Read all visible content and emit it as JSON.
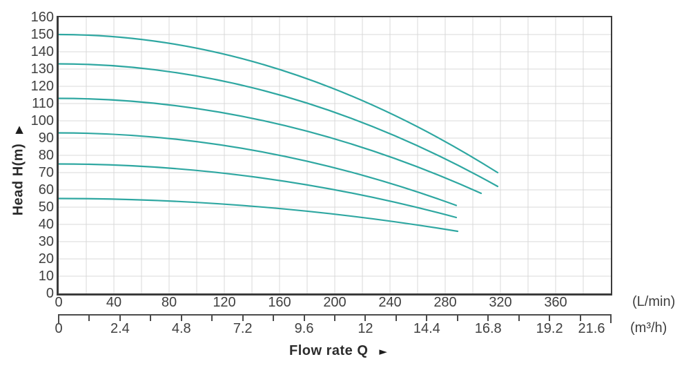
{
  "chart_data": {
    "type": "line",
    "title": "",
    "ylabel": "Head H(m)",
    "xlabel": "Flow rate Q",
    "legend": "none",
    "grid": "on",
    "colors": {
      "curve": "#2ea7a1",
      "grid": "#d9d9d9",
      "axis_border": "#3b3b3b",
      "ruler": "#4a4a4a",
      "text": "#3f3f3f"
    },
    "icons": {
      "y_axis_arrow": "▲",
      "x_axis_arrow": "►"
    },
    "y_axis": {
      "min": 0,
      "max": 160,
      "step": 10,
      "tick_labels": [
        "0",
        "10",
        "20",
        "30",
        "40",
        "50",
        "60",
        "70",
        "80",
        "90",
        "100",
        "110",
        "120",
        "130",
        "140",
        "150",
        "160"
      ]
    },
    "x_axis_lmin": {
      "unit_label": "(L/min)",
      "min": 0,
      "max": 400,
      "label_step": 40,
      "grid_step": 20,
      "tick_labels": [
        "0",
        "40",
        "80",
        "120",
        "160",
        "200",
        "240",
        "280",
        "320",
        "360"
      ]
    },
    "x_axis_m3h": {
      "unit_label": "(m³/h)",
      "min": 0,
      "max": 21.6,
      "minor_step": 1.2,
      "tick_labels": [
        "0",
        "2.4",
        "4.8",
        "7.2",
        "9.6",
        "12",
        "14.4",
        "16.8",
        "19.2",
        "21.6"
      ]
    },
    "series": [
      {
        "name": "curve_1",
        "start_head_m": 150,
        "end_q_lmin": 318,
        "end_head_m": 70,
        "points": [
          [
            0,
            150
          ],
          [
            40,
            148.7
          ],
          [
            80,
            144.9
          ],
          [
            120,
            138.6
          ],
          [
            160,
            129.7
          ],
          [
            200,
            118.4
          ],
          [
            240,
            104.4
          ],
          [
            280,
            88.0
          ],
          [
            318,
            70
          ]
        ]
      },
      {
        "name": "curve_2",
        "start_head_m": 133,
        "end_q_lmin": 318,
        "end_head_m": 62,
        "points": [
          [
            0,
            133
          ],
          [
            40,
            131.9
          ],
          [
            80,
            128.5
          ],
          [
            120,
            122.9
          ],
          [
            160,
            115.0
          ],
          [
            200,
            104.9
          ],
          [
            240,
            92.6
          ],
          [
            280,
            77.9
          ],
          [
            318,
            62
          ]
        ]
      },
      {
        "name": "curve_3",
        "start_head_m": 113,
        "end_q_lmin": 306,
        "end_head_m": 58,
        "points": [
          [
            0,
            113
          ],
          [
            40,
            112.1
          ],
          [
            80,
            109.2
          ],
          [
            120,
            104.5
          ],
          [
            160,
            98.0
          ],
          [
            200,
            89.5
          ],
          [
            240,
            79.2
          ],
          [
            280,
            67.0
          ],
          [
            306,
            58
          ]
        ]
      },
      {
        "name": "curve_4",
        "start_head_m": 93,
        "end_q_lmin": 288,
        "end_head_m": 51,
        "points": [
          [
            0,
            93
          ],
          [
            40,
            92.2
          ],
          [
            80,
            89.8
          ],
          [
            120,
            85.7
          ],
          [
            160,
            80.0
          ],
          [
            200,
            72.7
          ],
          [
            240,
            63.8
          ],
          [
            280,
            53.3
          ],
          [
            288,
            51
          ]
        ]
      },
      {
        "name": "curve_5",
        "start_head_m": 75,
        "end_q_lmin": 288,
        "end_head_m": 44,
        "points": [
          [
            0,
            75
          ],
          [
            40,
            74.4
          ],
          [
            80,
            72.6
          ],
          [
            120,
            69.6
          ],
          [
            160,
            65.4
          ],
          [
            200,
            60.1
          ],
          [
            240,
            53.5
          ],
          [
            280,
            45.7
          ],
          [
            288,
            44
          ]
        ]
      },
      {
        "name": "curve_6",
        "start_head_m": 55,
        "end_q_lmin": 289,
        "end_head_m": 36,
        "points": [
          [
            0,
            55
          ],
          [
            40,
            54.6
          ],
          [
            80,
            53.5
          ],
          [
            120,
            51.7
          ],
          [
            160,
            49.2
          ],
          [
            200,
            45.9
          ],
          [
            240,
            42.0
          ],
          [
            280,
            37.3
          ],
          [
            289,
            36
          ]
        ]
      }
    ]
  }
}
